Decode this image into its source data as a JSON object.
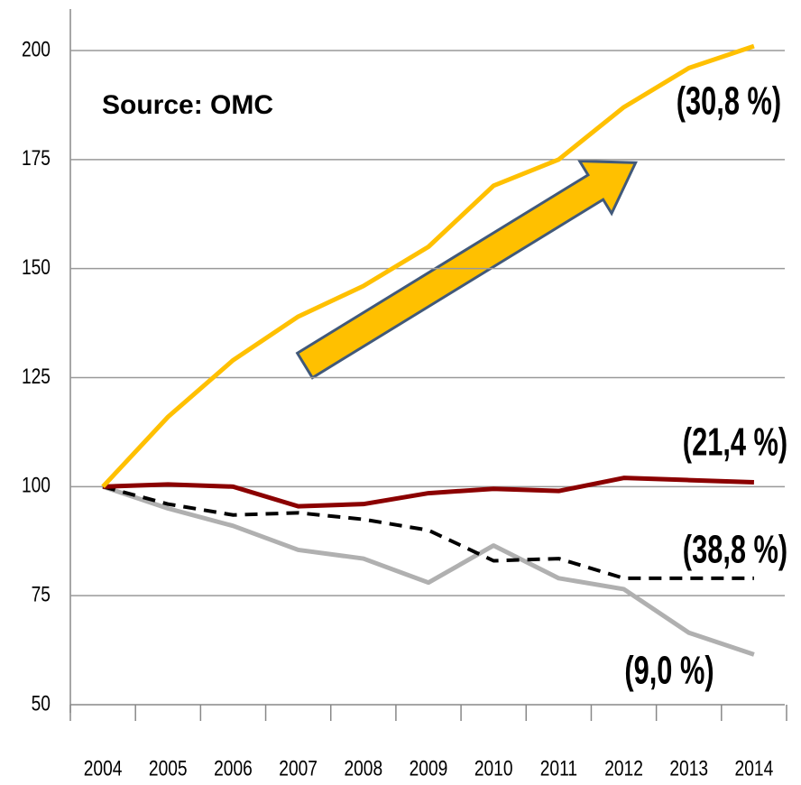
{
  "chart_data": {
    "type": "line",
    "categories": [
      "2004",
      "2005",
      "2006",
      "2007",
      "2008",
      "2009",
      "2010",
      "2011",
      "2012",
      "2013",
      "2014"
    ],
    "series": [
      {
        "color": "#ffc000",
        "values": [
          100,
          116,
          129,
          139,
          146,
          155,
          169,
          175,
          187,
          196,
          201
        ]
      },
      {
        "color": "#8b0000",
        "values": [
          100,
          100.5,
          100,
          95.5,
          96,
          98.5,
          99.5,
          99,
          102,
          101.5,
          101
        ]
      },
      {
        "color": "#000000",
        "dashed": true,
        "values": [
          100,
          96,
          93.5,
          94,
          92.5,
          90,
          83,
          83.5,
          79,
          79,
          79
        ]
      },
      {
        "color": "#b0b0b0",
        "values": [
          100,
          95,
          91,
          85.5,
          83.5,
          78,
          86.5,
          79,
          76.5,
          66.5,
          61.5
        ]
      }
    ],
    "annotations": [
      "Source: OMC",
      "(30,8 %)",
      "(21,4 %)",
      "(38,8 %)",
      "(9,0 %)"
    ],
    "ylim": [
      50,
      200
    ],
    "yticks": [
      50,
      75,
      100,
      125,
      150,
      175,
      200
    ],
    "grid": true
  }
}
